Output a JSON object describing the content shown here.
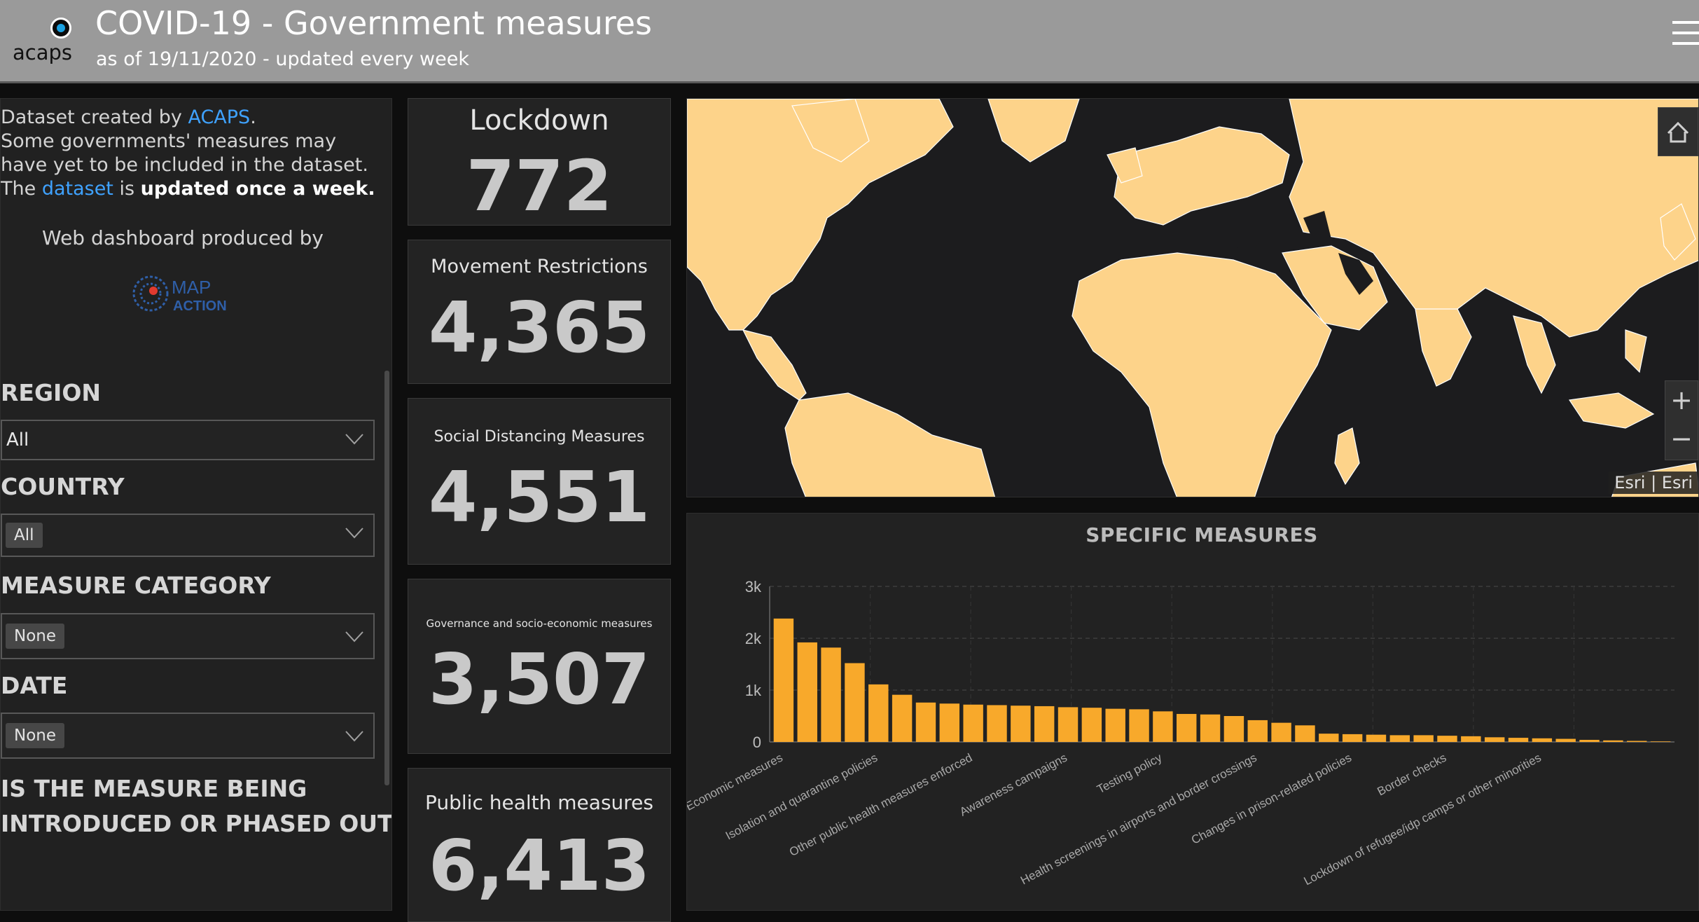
{
  "header": {
    "logo_text": "acaps",
    "title": "COVID-19 - Government measures",
    "subtitle": "as of 19/11/2020 - updated every week"
  },
  "intro": {
    "line1_prefix": "Dataset created by ",
    "acaps_link": "ACAPS",
    "line1_suffix": ".",
    "line2": "Some governments' measures may have yet to be included in the dataset.",
    "line3_prefix": "The ",
    "dataset_link": "dataset",
    "line3_mid": " is ",
    "line3_bold": "updated once a week.",
    "produced_by": "Web dashboard produced by",
    "mapaction_text": "MAP ACTION"
  },
  "filters": {
    "region": {
      "label": "REGION",
      "value": "All"
    },
    "country": {
      "label": "COUNTRY",
      "value": "All"
    },
    "measure_category": {
      "label": "MEASURE CATEGORY",
      "value": "None"
    },
    "date": {
      "label": "DATE",
      "value": "None"
    },
    "phase": {
      "label_line1": "IS THE MEASURE BEING",
      "label_line2": "INTRODUCED OR PHASED OUT?"
    }
  },
  "tiles": [
    {
      "label": "Lockdown",
      "value": "772"
    },
    {
      "label": "Movement Restrictions",
      "value": "4,365"
    },
    {
      "label": "Social Distancing Measures",
      "value": "4,551"
    },
    {
      "label": "Governance and socio-economic measures",
      "value": "3,507"
    },
    {
      "label": "Public health measures",
      "value": "6,413"
    }
  ],
  "map": {
    "attribution": "Esri | Esri",
    "zoom_in": "+",
    "zoom_out": "−",
    "land_color": "#fdd38a",
    "water_color": "#1c1c1e"
  },
  "chart_data": {
    "type": "bar",
    "title": "SPECIFIC MEASURES",
    "ylim": [
      0,
      3000
    ],
    "y_ticks": [
      "0",
      "1k",
      "2k",
      "3k"
    ],
    "y_tick_values": [
      0,
      1000,
      2000,
      3000
    ],
    "grid": true,
    "bar_color": "#f8a92b",
    "x_labels": [
      "Economic measures",
      "Isolation and quarantine policies",
      "Other public health measures enforced",
      "Awareness campaigns",
      "Testing policy",
      "Health screenings in airports and border crossings",
      "Changes in prison-related policies",
      "Border checks",
      "Lockdown of refugee/idp camps or other minorities"
    ],
    "values": [
      2380,
      1920,
      1820,
      1520,
      1110,
      910,
      760,
      740,
      720,
      710,
      700,
      690,
      670,
      660,
      640,
      630,
      590,
      540,
      530,
      500,
      420,
      370,
      320,
      160,
      150,
      140,
      130,
      130,
      120,
      110,
      90,
      80,
      70,
      60,
      40,
      30,
      20,
      10
    ]
  }
}
